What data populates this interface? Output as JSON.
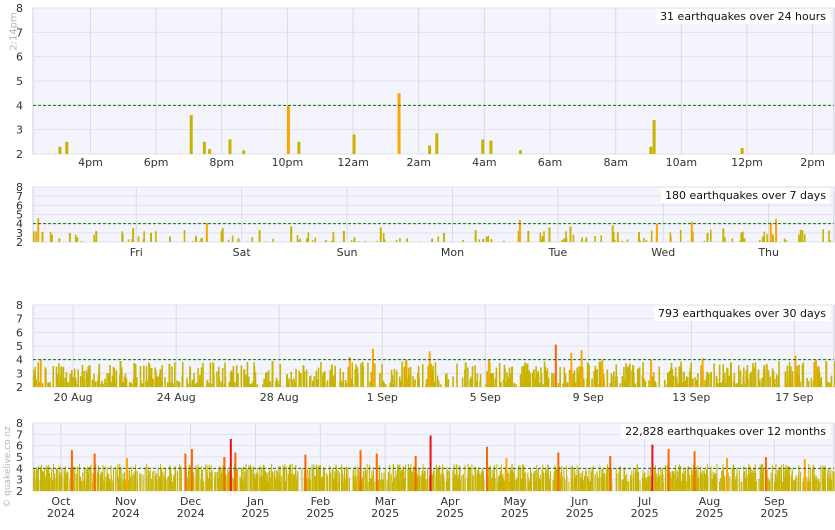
{
  "side_time": "2:14pm",
  "credit": "© quakelive.co.nz",
  "chart_data": [
    {
      "type": "bar",
      "title": "31 earthquakes over 24 hours",
      "ylim": [
        2,
        8
      ],
      "yticks": [
        2,
        3,
        4,
        5,
        6,
        7,
        8
      ],
      "reference_line": 4,
      "xrange": [
        0,
        24.4
      ],
      "xticks": [
        {
          "x": 1.75,
          "label": "4pm"
        },
        {
          "x": 3.75,
          "label": "6pm"
        },
        {
          "x": 5.75,
          "label": "8pm"
        },
        {
          "x": 7.75,
          "label": "10pm"
        },
        {
          "x": 9.75,
          "label": "12am"
        },
        {
          "x": 11.75,
          "label": "2am"
        },
        {
          "x": 13.75,
          "label": "4am"
        },
        {
          "x": 15.75,
          "label": "6am"
        },
        {
          "x": 17.75,
          "label": "8am"
        },
        {
          "x": 19.75,
          "label": "10am"
        },
        {
          "x": 21.75,
          "label": "12pm"
        },
        {
          "x": 23.75,
          "label": "2pm"
        }
      ],
      "x": [
        0.82,
        1.03,
        4.82,
        5.22,
        5.38,
        6.0,
        6.42,
        7.78,
        8.1,
        9.78,
        11.15,
        12.08,
        12.3,
        13.7,
        13.95,
        14.85,
        18.82,
        18.92,
        21.6
      ],
      "values": [
        2.3,
        2.5,
        3.6,
        2.5,
        2.2,
        2.6,
        2.15,
        4.0,
        2.5,
        2.8,
        4.5,
        2.35,
        2.85,
        2.6,
        2.55,
        2.15,
        2.3,
        3.4,
        2.25
      ]
    },
    {
      "type": "bar",
      "title": "180 earthquakes over 7 days",
      "ylim": [
        2,
        8
      ],
      "yticks": [
        2,
        3,
        4,
        5,
        6,
        7,
        8
      ],
      "reference_line": 4,
      "xrange": [
        0,
        7.6
      ],
      "xticks": [
        {
          "x": 0.98,
          "label": "Fri"
        },
        {
          "x": 1.98,
          "label": "Sat"
        },
        {
          "x": 2.98,
          "label": "Sun"
        },
        {
          "x": 3.98,
          "label": "Mon"
        },
        {
          "x": 4.98,
          "label": "Tue"
        },
        {
          "x": 5.98,
          "label": "Wed"
        },
        {
          "x": 6.98,
          "label": "Thu"
        }
      ],
      "x": [
        0.05,
        0.09,
        0.18,
        0.25,
        0.35,
        0.42,
        0.6,
        0.95,
        1.05,
        1.12,
        1.3,
        1.65,
        1.8,
        1.95,
        2.15,
        2.45,
        2.6,
        2.95,
        3.05,
        3.3,
        3.45,
        3.55,
        3.9,
        4.2,
        4.35,
        4.62,
        4.7,
        4.9,
        5.1,
        5.25,
        5.5,
        5.75,
        5.92,
        6.05,
        6.25,
        6.4,
        6.55,
        6.75,
        7.0,
        7.05,
        7.3
      ],
      "values": [
        4.6,
        3.1,
        2.8,
        2.4,
        3.0,
        2.5,
        3.2,
        3.5,
        2.3,
        3.0,
        2.6,
        4.1,
        3.5,
        2.4,
        3.3,
        3.7,
        2.4,
        3.2,
        2.5,
        3.6,
        2.2,
        2.4,
        3.0,
        3.3,
        2.3,
        4.4,
        3.2,
        3.6,
        3.7,
        2.5,
        3.8,
        3.1,
        4.0,
        2.6,
        4.2,
        3.0,
        3.5,
        2.4,
        4.1,
        4.5,
        3.3
      ]
    },
    {
      "type": "bar",
      "title": "793 earthquakes over 30 days",
      "ylim": [
        2,
        8
      ],
      "yticks": [
        2,
        3,
        4,
        5,
        6,
        7,
        8
      ],
      "reference_line": 4,
      "xrange": [
        0,
        31.1
      ],
      "xticks": [
        {
          "x": 1.56,
          "label": "20 Aug"
        },
        {
          "x": 5.56,
          "label": "24 Aug"
        },
        {
          "x": 9.56,
          "label": "28 Aug"
        },
        {
          "x": 13.56,
          "label": "1 Sep"
        },
        {
          "x": 17.56,
          "label": "5 Sep"
        },
        {
          "x": 21.56,
          "label": "9 Sep"
        },
        {
          "x": 25.56,
          "label": "13 Sep"
        },
        {
          "x": 29.56,
          "label": "17 Sep"
        }
      ],
      "x": [
        0.3,
        1.1,
        2.2,
        3.4,
        4.6,
        5.3,
        6.1,
        7.0,
        8.2,
        9.3,
        10.5,
        11.6,
        12.3,
        13.2,
        14.5,
        15.4,
        16.8,
        17.7,
        18.6,
        19.2,
        20.3,
        20.9,
        21.3,
        22.1,
        23.3,
        24.0,
        25.1,
        26.0,
        27.1,
        28.4,
        29.6,
        30.4,
        30.8
      ],
      "values": [
        4.0,
        3.5,
        3.6,
        3.9,
        3.4,
        3.7,
        3.5,
        3.8,
        3.3,
        3.9,
        3.6,
        3.5,
        4.2,
        4.8,
        4.0,
        4.6,
        3.8,
        4.0,
        3.5,
        3.7,
        5.1,
        4.5,
        4.7,
        4.0,
        3.6,
        4.0,
        3.5,
        4.1,
        3.8,
        3.6,
        4.3,
        4.0,
        3.9
      ]
    },
    {
      "type": "bar",
      "title": "22,828 earthquakes over 12 months",
      "ylim": [
        2,
        8
      ],
      "yticks": [
        2,
        3,
        4,
        5,
        6,
        7,
        8
      ],
      "reference_line": 4,
      "xrange": [
        0,
        12.35
      ],
      "xticks": [
        {
          "x": 0.43,
          "label": "Oct",
          "label2": "2024"
        },
        {
          "x": 1.43,
          "label": "Nov",
          "label2": "2024"
        },
        {
          "x": 2.43,
          "label": "Dec",
          "label2": "2024"
        },
        {
          "x": 3.43,
          "label": "Jan",
          "label2": "2025"
        },
        {
          "x": 4.43,
          "label": "Feb",
          "label2": "2025"
        },
        {
          "x": 5.43,
          "label": "Mar",
          "label2": "2025"
        },
        {
          "x": 6.43,
          "label": "Apr",
          "label2": "2025"
        },
        {
          "x": 7.43,
          "label": "May",
          "label2": "2025"
        },
        {
          "x": 8.43,
          "label": "Jun",
          "label2": "2025"
        },
        {
          "x": 9.43,
          "label": "Jul",
          "label2": "2025"
        },
        {
          "x": 10.43,
          "label": "Aug",
          "label2": "2025"
        },
        {
          "x": 11.43,
          "label": "Sep",
          "label2": "2025"
        }
      ],
      "x": [
        0.6,
        0.95,
        1.45,
        2.35,
        2.45,
        2.95,
        3.05,
        3.12,
        4.2,
        5.05,
        5.3,
        5.9,
        6.13,
        7.0,
        7.3,
        8.1,
        8.9,
        9.55,
        9.8,
        10.2,
        10.7,
        11.3,
        11.9
      ],
      "values": [
        5.6,
        5.3,
        4.9,
        5.3,
        5.7,
        5.0,
        6.6,
        5.4,
        5.2,
        5.6,
        5.3,
        5.1,
        6.9,
        5.9,
        4.9,
        5.4,
        5.1,
        6.1,
        5.7,
        5.5,
        4.9,
        5.0,
        4.8
      ]
    }
  ]
}
